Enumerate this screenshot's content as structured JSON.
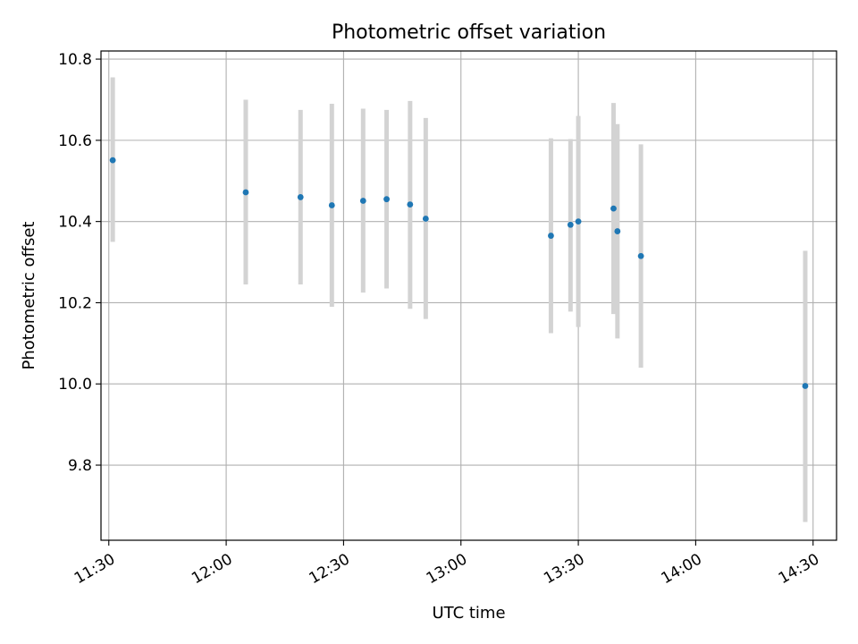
{
  "chart_data": {
    "type": "scatter",
    "title": "Photometric offset variation",
    "xlabel": "UTC time",
    "ylabel": "Photometric offset",
    "x_ticks": [
      "11:30",
      "12:00",
      "12:30",
      "13:00",
      "13:30",
      "14:00",
      "14:30"
    ],
    "x_tick_minutes": [
      690,
      720,
      750,
      780,
      810,
      840,
      870
    ],
    "y_ticks": [
      "9.8",
      "10.0",
      "10.2",
      "10.4",
      "10.6",
      "10.8"
    ],
    "y_tick_values": [
      9.8,
      10.0,
      10.2,
      10.4,
      10.6,
      10.8
    ],
    "xlim": [
      "11:28",
      "14:36"
    ],
    "ylim": [
      9.615,
      10.82
    ],
    "grid": true,
    "colors": {
      "points": "#1f77b4",
      "error_bars": "#d3d3d3",
      "grid": "#b0b0b0"
    },
    "points": [
      {
        "x": "11:31",
        "y": 10.551,
        "ylow": 10.35,
        "yhigh": 10.755
      },
      {
        "x": "12:05",
        "y": 10.472,
        "ylow": 10.245,
        "yhigh": 10.7
      },
      {
        "x": "12:19",
        "y": 10.46,
        "ylow": 10.245,
        "yhigh": 10.675
      },
      {
        "x": "12:27",
        "y": 10.44,
        "ylow": 10.19,
        "yhigh": 10.69
      },
      {
        "x": "12:35",
        "y": 10.451,
        "ylow": 10.225,
        "yhigh": 10.678
      },
      {
        "x": "12:41",
        "y": 10.455,
        "ylow": 10.235,
        "yhigh": 10.675
      },
      {
        "x": "12:47",
        "y": 10.442,
        "ylow": 10.185,
        "yhigh": 10.697
      },
      {
        "x": "12:51",
        "y": 10.407,
        "ylow": 10.16,
        "yhigh": 10.655
      },
      {
        "x": "13:23",
        "y": 10.365,
        "ylow": 10.125,
        "yhigh": 10.605
      },
      {
        "x": "13:28",
        "y": 10.392,
        "ylow": 10.178,
        "yhigh": 10.603
      },
      {
        "x": "13:30",
        "y": 10.4,
        "ylow": 10.14,
        "yhigh": 10.66
      },
      {
        "x": "13:39",
        "y": 10.432,
        "ylow": 10.172,
        "yhigh": 10.692
      },
      {
        "x": "13:40",
        "y": 10.376,
        "ylow": 10.112,
        "yhigh": 10.64
      },
      {
        "x": "13:46",
        "y": 10.315,
        "ylow": 10.04,
        "yhigh": 10.59
      },
      {
        "x": "14:28",
        "y": 9.995,
        "ylow": 9.66,
        "yhigh": 10.328
      }
    ]
  }
}
